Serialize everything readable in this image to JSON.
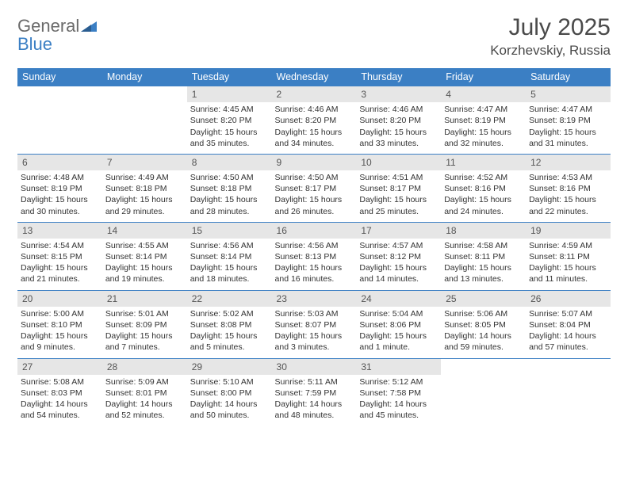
{
  "brand": {
    "name_part1": "General",
    "name_part2": "Blue"
  },
  "title": {
    "month_year": "July 2025",
    "location": "Korzhevskiy, Russia"
  },
  "colors": {
    "accent": "#3b7fc4",
    "header_text": "#ffffff",
    "daynum_bg": "#e6e6e6",
    "body_text": "#333333",
    "title_text": "#4a4a4a",
    "logo_gray": "#6b6b6b"
  },
  "day_headers": [
    "Sunday",
    "Monday",
    "Tuesday",
    "Wednesday",
    "Thursday",
    "Friday",
    "Saturday"
  ],
  "weeks": [
    [
      null,
      null,
      {
        "n": "1",
        "sr": "Sunrise: 4:45 AM",
        "ss": "Sunset: 8:20 PM",
        "dl": "Daylight: 15 hours and 35 minutes."
      },
      {
        "n": "2",
        "sr": "Sunrise: 4:46 AM",
        "ss": "Sunset: 8:20 PM",
        "dl": "Daylight: 15 hours and 34 minutes."
      },
      {
        "n": "3",
        "sr": "Sunrise: 4:46 AM",
        "ss": "Sunset: 8:20 PM",
        "dl": "Daylight: 15 hours and 33 minutes."
      },
      {
        "n": "4",
        "sr": "Sunrise: 4:47 AM",
        "ss": "Sunset: 8:19 PM",
        "dl": "Daylight: 15 hours and 32 minutes."
      },
      {
        "n": "5",
        "sr": "Sunrise: 4:47 AM",
        "ss": "Sunset: 8:19 PM",
        "dl": "Daylight: 15 hours and 31 minutes."
      }
    ],
    [
      {
        "n": "6",
        "sr": "Sunrise: 4:48 AM",
        "ss": "Sunset: 8:19 PM",
        "dl": "Daylight: 15 hours and 30 minutes."
      },
      {
        "n": "7",
        "sr": "Sunrise: 4:49 AM",
        "ss": "Sunset: 8:18 PM",
        "dl": "Daylight: 15 hours and 29 minutes."
      },
      {
        "n": "8",
        "sr": "Sunrise: 4:50 AM",
        "ss": "Sunset: 8:18 PM",
        "dl": "Daylight: 15 hours and 28 minutes."
      },
      {
        "n": "9",
        "sr": "Sunrise: 4:50 AM",
        "ss": "Sunset: 8:17 PM",
        "dl": "Daylight: 15 hours and 26 minutes."
      },
      {
        "n": "10",
        "sr": "Sunrise: 4:51 AM",
        "ss": "Sunset: 8:17 PM",
        "dl": "Daylight: 15 hours and 25 minutes."
      },
      {
        "n": "11",
        "sr": "Sunrise: 4:52 AM",
        "ss": "Sunset: 8:16 PM",
        "dl": "Daylight: 15 hours and 24 minutes."
      },
      {
        "n": "12",
        "sr": "Sunrise: 4:53 AM",
        "ss": "Sunset: 8:16 PM",
        "dl": "Daylight: 15 hours and 22 minutes."
      }
    ],
    [
      {
        "n": "13",
        "sr": "Sunrise: 4:54 AM",
        "ss": "Sunset: 8:15 PM",
        "dl": "Daylight: 15 hours and 21 minutes."
      },
      {
        "n": "14",
        "sr": "Sunrise: 4:55 AM",
        "ss": "Sunset: 8:14 PM",
        "dl": "Daylight: 15 hours and 19 minutes."
      },
      {
        "n": "15",
        "sr": "Sunrise: 4:56 AM",
        "ss": "Sunset: 8:14 PM",
        "dl": "Daylight: 15 hours and 18 minutes."
      },
      {
        "n": "16",
        "sr": "Sunrise: 4:56 AM",
        "ss": "Sunset: 8:13 PM",
        "dl": "Daylight: 15 hours and 16 minutes."
      },
      {
        "n": "17",
        "sr": "Sunrise: 4:57 AM",
        "ss": "Sunset: 8:12 PM",
        "dl": "Daylight: 15 hours and 14 minutes."
      },
      {
        "n": "18",
        "sr": "Sunrise: 4:58 AM",
        "ss": "Sunset: 8:11 PM",
        "dl": "Daylight: 15 hours and 13 minutes."
      },
      {
        "n": "19",
        "sr": "Sunrise: 4:59 AM",
        "ss": "Sunset: 8:11 PM",
        "dl": "Daylight: 15 hours and 11 minutes."
      }
    ],
    [
      {
        "n": "20",
        "sr": "Sunrise: 5:00 AM",
        "ss": "Sunset: 8:10 PM",
        "dl": "Daylight: 15 hours and 9 minutes."
      },
      {
        "n": "21",
        "sr": "Sunrise: 5:01 AM",
        "ss": "Sunset: 8:09 PM",
        "dl": "Daylight: 15 hours and 7 minutes."
      },
      {
        "n": "22",
        "sr": "Sunrise: 5:02 AM",
        "ss": "Sunset: 8:08 PM",
        "dl": "Daylight: 15 hours and 5 minutes."
      },
      {
        "n": "23",
        "sr": "Sunrise: 5:03 AM",
        "ss": "Sunset: 8:07 PM",
        "dl": "Daylight: 15 hours and 3 minutes."
      },
      {
        "n": "24",
        "sr": "Sunrise: 5:04 AM",
        "ss": "Sunset: 8:06 PM",
        "dl": "Daylight: 15 hours and 1 minute."
      },
      {
        "n": "25",
        "sr": "Sunrise: 5:06 AM",
        "ss": "Sunset: 8:05 PM",
        "dl": "Daylight: 14 hours and 59 minutes."
      },
      {
        "n": "26",
        "sr": "Sunrise: 5:07 AM",
        "ss": "Sunset: 8:04 PM",
        "dl": "Daylight: 14 hours and 57 minutes."
      }
    ],
    [
      {
        "n": "27",
        "sr": "Sunrise: 5:08 AM",
        "ss": "Sunset: 8:03 PM",
        "dl": "Daylight: 14 hours and 54 minutes."
      },
      {
        "n": "28",
        "sr": "Sunrise: 5:09 AM",
        "ss": "Sunset: 8:01 PM",
        "dl": "Daylight: 14 hours and 52 minutes."
      },
      {
        "n": "29",
        "sr": "Sunrise: 5:10 AM",
        "ss": "Sunset: 8:00 PM",
        "dl": "Daylight: 14 hours and 50 minutes."
      },
      {
        "n": "30",
        "sr": "Sunrise: 5:11 AM",
        "ss": "Sunset: 7:59 PM",
        "dl": "Daylight: 14 hours and 48 minutes."
      },
      {
        "n": "31",
        "sr": "Sunrise: 5:12 AM",
        "ss": "Sunset: 7:58 PM",
        "dl": "Daylight: 14 hours and 45 minutes."
      },
      null,
      null
    ]
  ]
}
